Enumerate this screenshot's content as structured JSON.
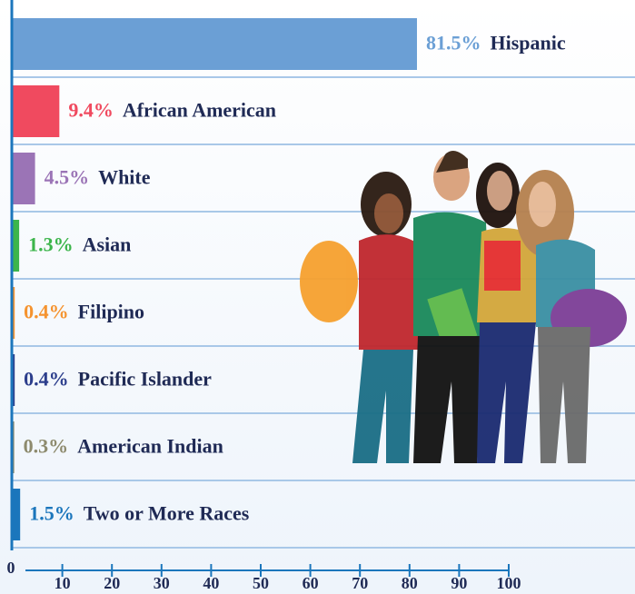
{
  "chart_data": {
    "type": "bar",
    "orientation": "horizontal",
    "categories": [
      "Hispanic",
      "African American",
      "White",
      "Asian",
      "Filipino",
      "Pacific Islander",
      "American Indian",
      "Two or More Races"
    ],
    "values": [
      81.5,
      9.4,
      4.5,
      1.3,
      0.4,
      0.4,
      0.3,
      1.5
    ],
    "value_labels": [
      "81.5%",
      "9.4%",
      "4.5%",
      "1.3%",
      "0.4%",
      "0.4%",
      "0.3%",
      "1.5%"
    ],
    "colors": [
      "#6b9fd5",
      "#f04a5f",
      "#9b74b6",
      "#3cb54b",
      "#f5932f",
      "#2c3e8c",
      "#8d8a6d",
      "#1b76bc"
    ],
    "xlim": [
      0,
      100
    ],
    "xticks": [
      0,
      10,
      20,
      30,
      40,
      50,
      60,
      70,
      80,
      90,
      100
    ]
  }
}
